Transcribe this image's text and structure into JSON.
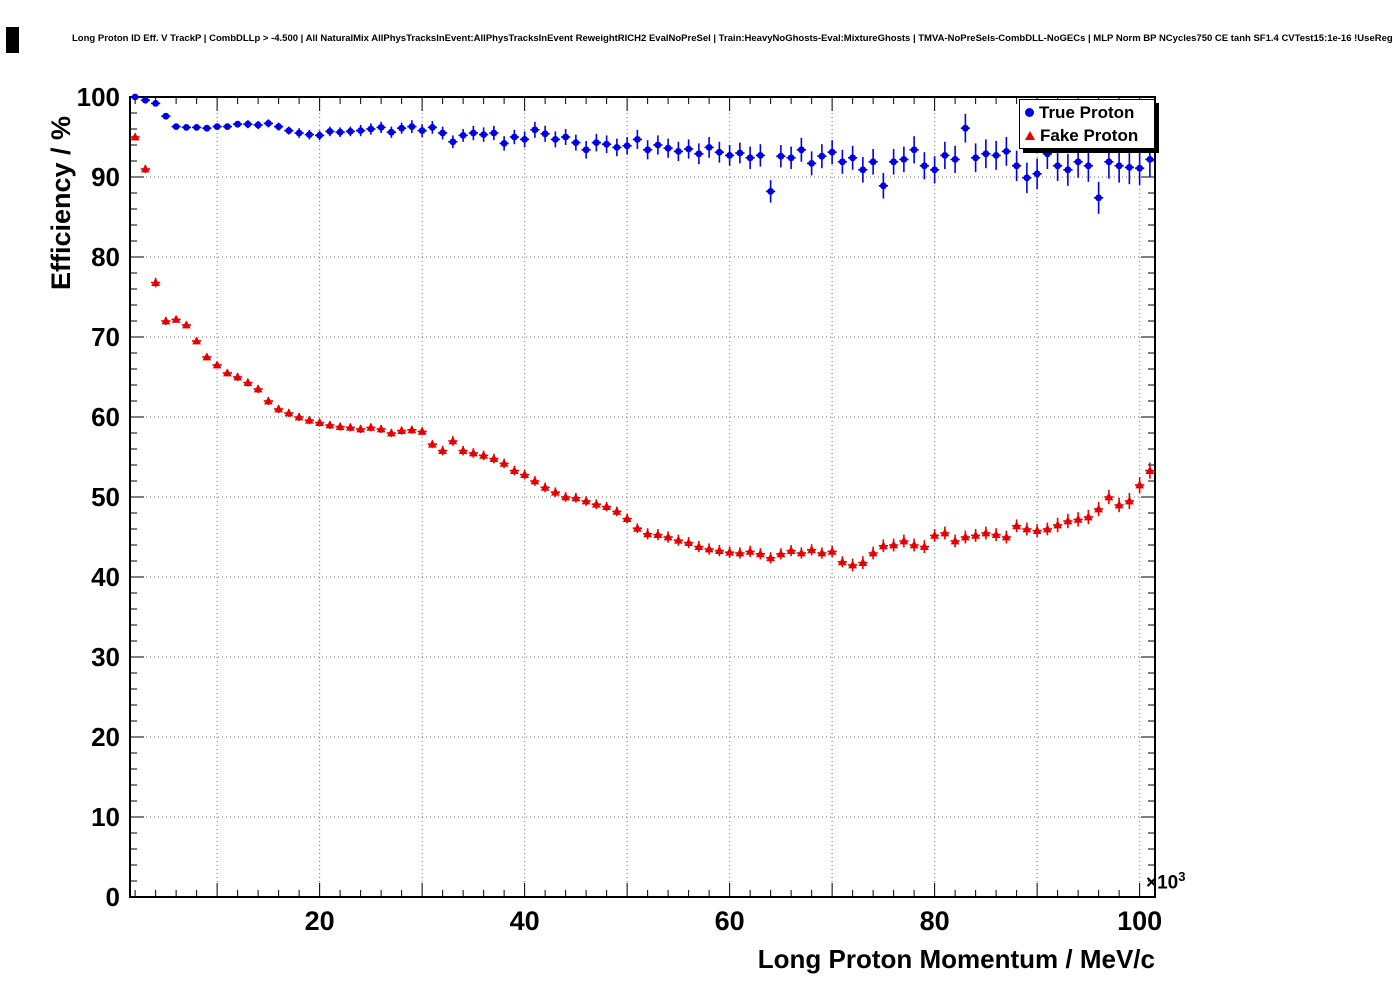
{
  "axes": {
    "y_title": "Efficiency / %",
    "x_title": "Long Proton Momentum / MeV/c",
    "exponent_base": "×10",
    "exponent_power": "3",
    "y_ticks": [
      0,
      10,
      20,
      30,
      40,
      50,
      60,
      70,
      80,
      90,
      100
    ],
    "x_ticks": [
      20,
      40,
      60,
      80,
      100
    ],
    "grid_style": "dotted",
    "grid_color": "#777777",
    "frame_color": "#000000"
  },
  "chart_data": {
    "type": "scatter",
    "title": "Long Proton ID Eff. V TrackP | CombDLLp > -4.500 | All NaturalMix AllPhysTracksInEvent:AllPhysTracksInEvent ReweightRICH2 EvalNoPreSel | Train:HeavyNoGhosts-Eval:MixtureGhosts | TMVA-NoPreSels-CombDLL-NoGECs | MLP Norm BP NCycles750 CE tanh SF1.4 CVTest15:1e-16 !UseReg",
    "xlabel": "Long Proton Momentum / MeV/c",
    "ylabel": "Efficiency / %",
    "x_unit_factor": 1000,
    "xlim": [
      1.5,
      101.5
    ],
    "ylim": [
      0,
      100
    ],
    "grid": true,
    "legend_position": "top-right",
    "x": [
      2,
      3,
      4,
      5,
      6,
      7,
      8,
      9,
      10,
      11,
      12,
      13,
      14,
      15,
      16,
      17,
      18,
      19,
      20,
      21,
      22,
      23,
      24,
      25,
      26,
      27,
      28,
      29,
      30,
      31,
      32,
      33,
      34,
      35,
      36,
      37,
      38,
      39,
      40,
      41,
      42,
      43,
      44,
      45,
      46,
      47,
      48,
      49,
      50,
      51,
      52,
      53,
      54,
      55,
      56,
      57,
      58,
      59,
      60,
      61,
      62,
      63,
      64,
      65,
      66,
      67,
      68,
      69,
      70,
      71,
      72,
      73,
      74,
      75,
      76,
      77,
      78,
      79,
      80,
      81,
      82,
      83,
      84,
      85,
      86,
      87,
      88,
      89,
      90,
      91,
      92,
      93,
      94,
      95,
      96,
      97,
      98,
      99,
      100,
      101
    ],
    "series": [
      {
        "name": "True Proton",
        "marker": "circle",
        "color": "#0000e6",
        "values": [
          100.0,
          99.6,
          99.2,
          97.6,
          96.3,
          96.2,
          96.2,
          96.1,
          96.3,
          96.3,
          96.6,
          96.6,
          96.5,
          96.7,
          96.3,
          95.8,
          95.5,
          95.3,
          95.2,
          95.7,
          95.6,
          95.7,
          95.8,
          96.0,
          96.2,
          95.6,
          96.1,
          96.3,
          95.8,
          96.2,
          95.5,
          94.4,
          95.2,
          95.5,
          95.3,
          95.5,
          94.2,
          95.0,
          94.7,
          95.9,
          95.4,
          94.7,
          95.0,
          94.3,
          93.4,
          94.3,
          94.1,
          93.7,
          93.9,
          94.7,
          93.4,
          94.0,
          93.6,
          93.2,
          93.5,
          92.9,
          93.7,
          93.1,
          92.7,
          93.0,
          92.4,
          92.7,
          88.2,
          92.6,
          92.4,
          93.4,
          91.7,
          92.6,
          93.1,
          91.9,
          92.4,
          90.9,
          91.9,
          88.9,
          91.9,
          92.2,
          93.4,
          91.4,
          90.9,
          92.7,
          92.2,
          96.1,
          92.4,
          92.9,
          92.7,
          93.2,
          91.4,
          89.9,
          90.4,
          92.9,
          91.4,
          90.9,
          91.9,
          91.4,
          87.4,
          91.9,
          91.4,
          91.2,
          91.1,
          92.2
        ],
        "y_err": [
          0.2,
          0.2,
          0.3,
          0.3,
          0.3,
          0.3,
          0.4,
          0.4,
          0.4,
          0.4,
          0.4,
          0.5,
          0.5,
          0.5,
          0.5,
          0.5,
          0.6,
          0.6,
          0.6,
          0.6,
          0.6,
          0.6,
          0.7,
          0.7,
          0.7,
          0.7,
          0.7,
          0.8,
          0.8,
          0.8,
          0.8,
          0.8,
          0.8,
          0.9,
          0.9,
          0.9,
          0.9,
          0.9,
          1.0,
          1.0,
          1.0,
          1.0,
          1.0,
          1.0,
          1.1,
          1.1,
          1.1,
          1.1,
          1.1,
          1.2,
          1.2,
          1.2,
          1.2,
          1.2,
          1.2,
          1.3,
          1.3,
          1.3,
          1.3,
          1.3,
          1.4,
          1.4,
          1.4,
          1.4,
          1.4,
          1.5,
          1.5,
          1.5,
          1.5,
          1.5,
          1.5,
          1.6,
          1.6,
          1.6,
          1.6,
          1.6,
          1.7,
          1.7,
          1.7,
          1.7,
          1.7,
          1.8,
          1.8,
          1.8,
          1.8,
          1.8,
          1.9,
          1.9,
          1.9,
          1.9,
          1.9,
          2.0,
          2.0,
          2.0,
          2.0,
          2.1,
          2.1,
          2.1,
          2.1,
          2.2
        ]
      },
      {
        "name": "Fake Proton",
        "marker": "triangle_up",
        "color": "#e60000",
        "values": [
          95.0,
          91.0,
          76.8,
          72.0,
          72.2,
          71.5,
          69.5,
          67.5,
          66.5,
          65.5,
          65.0,
          64.3,
          63.5,
          62.0,
          61.0,
          60.5,
          60.0,
          59.6,
          59.3,
          59.0,
          58.8,
          58.7,
          58.5,
          58.7,
          58.5,
          58.0,
          58.3,
          58.4,
          58.2,
          56.6,
          55.8,
          57.0,
          55.8,
          55.5,
          55.2,
          54.8,
          54.2,
          53.3,
          52.8,
          52.0,
          51.2,
          50.6,
          50.0,
          49.9,
          49.5,
          49.1,
          48.8,
          48.2,
          47.3,
          46.1,
          45.4,
          45.3,
          45.0,
          44.6,
          44.3,
          43.8,
          43.5,
          43.3,
          43.1,
          43.0,
          43.2,
          42.9,
          42.4,
          42.9,
          43.3,
          43.0,
          43.4,
          43.0,
          43.2,
          41.9,
          41.5,
          41.8,
          43.0,
          43.9,
          44.0,
          44.5,
          44.0,
          43.8,
          45.2,
          45.5,
          44.5,
          45.0,
          45.2,
          45.5,
          45.3,
          45.0,
          46.4,
          46.0,
          45.8,
          46.0,
          46.5,
          47.0,
          47.2,
          47.5,
          48.5,
          50.0,
          49.0,
          49.5,
          51.5,
          53.3
        ],
        "y_err": [
          0.4,
          0.5,
          0.6,
          0.5,
          0.4,
          0.4,
          0.4,
          0.4,
          0.4,
          0.4,
          0.5,
          0.5,
          0.5,
          0.5,
          0.5,
          0.5,
          0.5,
          0.5,
          0.5,
          0.5,
          0.5,
          0.5,
          0.5,
          0.5,
          0.5,
          0.5,
          0.5,
          0.5,
          0.5,
          0.5,
          0.6,
          0.6,
          0.6,
          0.6,
          0.6,
          0.6,
          0.6,
          0.6,
          0.6,
          0.6,
          0.6,
          0.6,
          0.6,
          0.6,
          0.6,
          0.6,
          0.6,
          0.6,
          0.6,
          0.6,
          0.7,
          0.7,
          0.7,
          0.7,
          0.7,
          0.7,
          0.7,
          0.7,
          0.7,
          0.7,
          0.7,
          0.7,
          0.7,
          0.7,
          0.7,
          0.7,
          0.7,
          0.7,
          0.7,
          0.7,
          0.8,
          0.8,
          0.8,
          0.8,
          0.8,
          0.8,
          0.8,
          0.8,
          0.8,
          0.8,
          0.8,
          0.8,
          0.8,
          0.8,
          0.8,
          0.8,
          0.8,
          0.8,
          0.8,
          0.8,
          0.9,
          0.9,
          0.9,
          0.9,
          0.9,
          0.9,
          0.9,
          1.0,
          1.0,
          1.0
        ]
      }
    ]
  }
}
